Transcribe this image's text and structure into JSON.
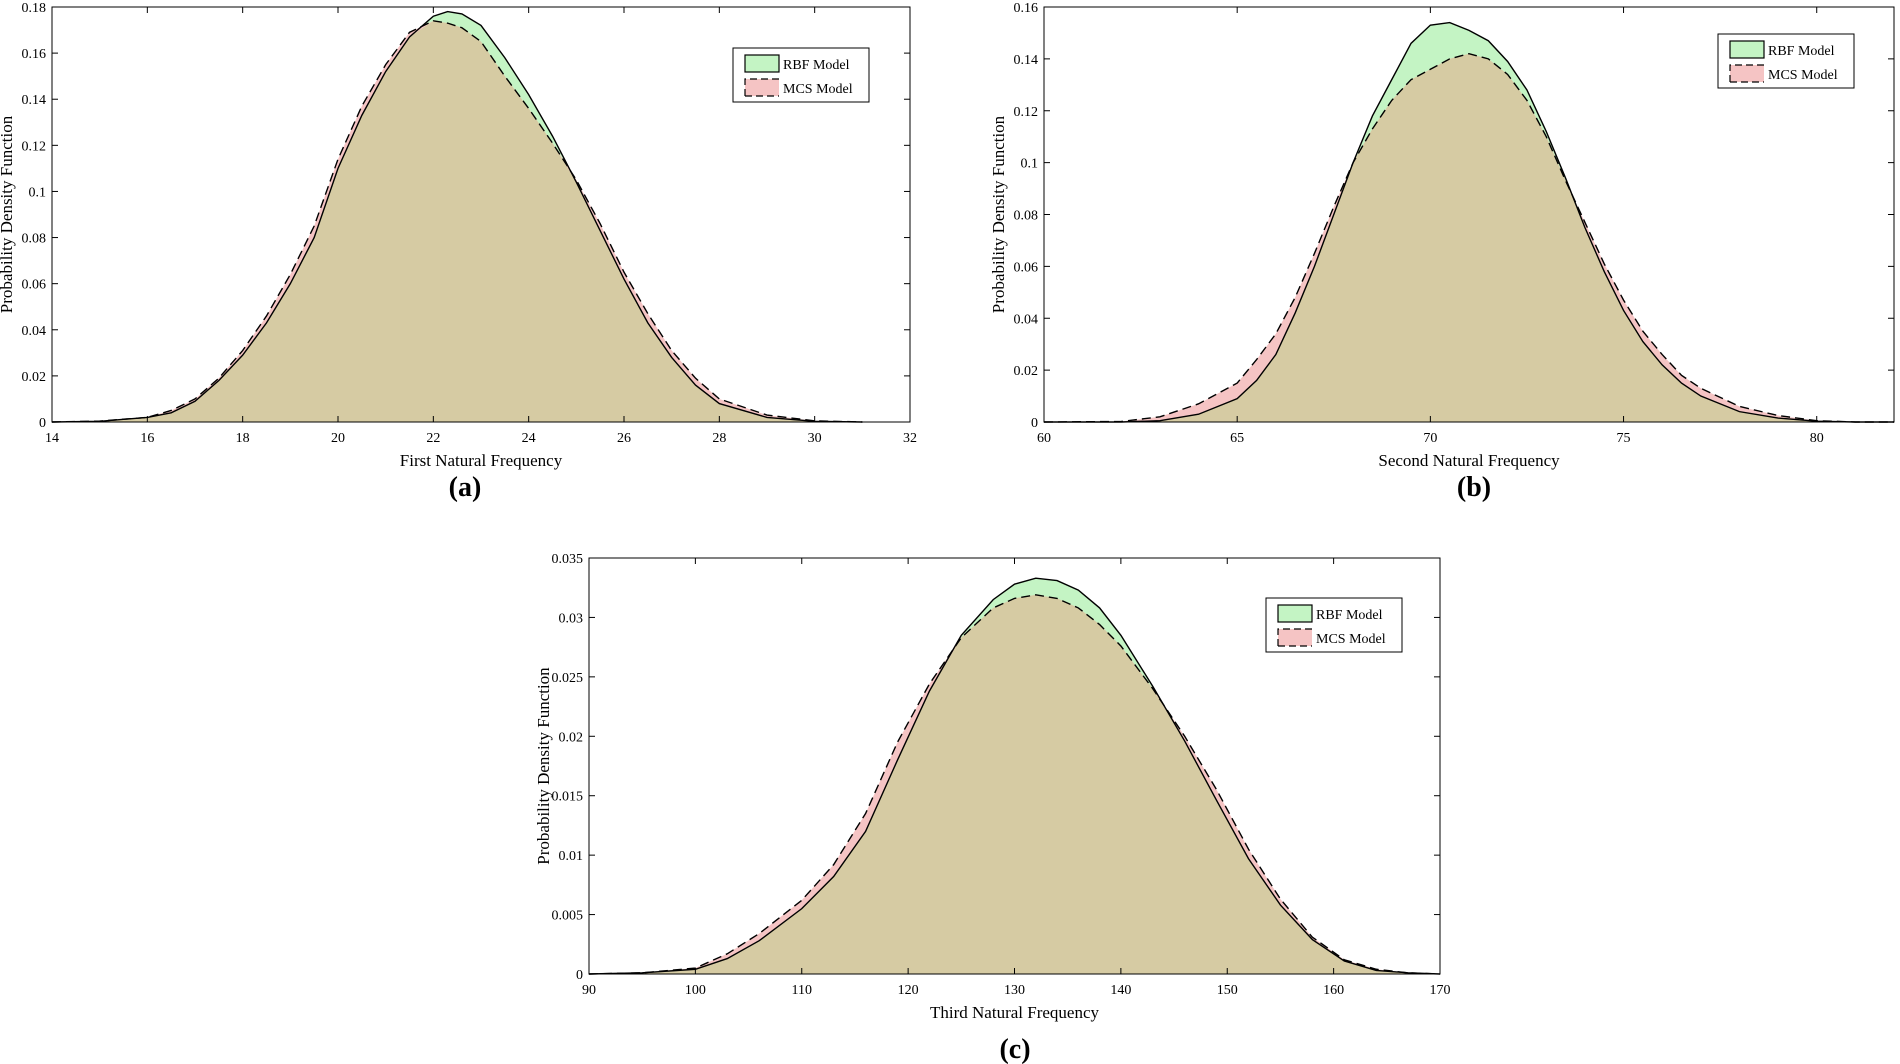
{
  "colors": {
    "rbf_fill": "#c4f4c4",
    "mcs_fill": "#f5c4c4",
    "overlap_fill": "#d6cba3",
    "line": "#000000",
    "background": "#ffffff"
  },
  "chart_data": [
    {
      "type": "area",
      "caption": "(a)",
      "xlabel": "First Natural Frequency",
      "ylabel": "Probability Density Function",
      "xlim": [
        14,
        32
      ],
      "ylim": [
        0,
        0.18
      ],
      "xticks": [
        14,
        16,
        18,
        20,
        22,
        24,
        26,
        28,
        30,
        32
      ],
      "yticks": [
        0,
        0.02,
        0.04,
        0.06,
        0.08,
        0.1,
        0.12,
        0.14,
        0.16,
        0.18
      ],
      "grid": false,
      "legend_position": "top-right",
      "series": [
        {
          "name": "RBF Model",
          "style": "solid",
          "x": [
            14,
            15,
            16,
            16.5,
            17,
            17.5,
            18,
            18.5,
            19,
            19.5,
            20,
            20.5,
            21,
            21.5,
            22,
            22.3,
            22.6,
            23,
            23.5,
            24,
            24.5,
            25,
            25.5,
            26,
            26.5,
            27,
            27.5,
            28,
            29,
            30,
            31
          ],
          "y": [
            0,
            0.0003,
            0.002,
            0.004,
            0.009,
            0.018,
            0.029,
            0.043,
            0.06,
            0.08,
            0.11,
            0.133,
            0.152,
            0.167,
            0.176,
            0.178,
            0.177,
            0.172,
            0.158,
            0.142,
            0.124,
            0.104,
            0.083,
            0.062,
            0.043,
            0.028,
            0.016,
            0.008,
            0.002,
            0.0003,
            0
          ]
        },
        {
          "name": "MCS Model",
          "style": "dashed",
          "x": [
            14,
            15,
            16,
            16.5,
            17,
            17.5,
            18,
            18.5,
            19,
            19.5,
            20,
            20.5,
            21,
            21.5,
            22,
            22.3,
            22.6,
            23,
            23.5,
            24,
            24.5,
            25,
            25.5,
            26,
            26.5,
            27,
            27.5,
            28,
            29,
            30,
            31
          ],
          "y": [
            0,
            0.0004,
            0.002,
            0.005,
            0.01,
            0.019,
            0.031,
            0.046,
            0.064,
            0.085,
            0.114,
            0.137,
            0.155,
            0.169,
            0.174,
            0.173,
            0.171,
            0.165,
            0.15,
            0.136,
            0.121,
            0.105,
            0.086,
            0.065,
            0.047,
            0.031,
            0.019,
            0.01,
            0.003,
            0.0005,
            0
          ]
        }
      ]
    },
    {
      "type": "area",
      "caption": "(b)",
      "xlabel": "Second Natural Frequency",
      "ylabel": "Probability Density Function",
      "xlim": [
        60,
        82
      ],
      "ylim": [
        0,
        0.16
      ],
      "xticks": [
        60,
        65,
        70,
        75,
        80
      ],
      "yticks": [
        0,
        0.02,
        0.04,
        0.06,
        0.08,
        0.1,
        0.12,
        0.14,
        0.16
      ],
      "grid": false,
      "legend_position": "top-right",
      "series": [
        {
          "name": "RBF Model",
          "style": "solid",
          "x": [
            60,
            62,
            63,
            64,
            65,
            65.5,
            66,
            66.5,
            67,
            67.5,
            68,
            68.5,
            69,
            69.5,
            70,
            70.5,
            71,
            71.5,
            72,
            72.5,
            73,
            73.5,
            74,
            74.5,
            75,
            75.5,
            76,
            76.5,
            77,
            78,
            79,
            80,
            81,
            82
          ],
          "y": [
            0,
            0,
            0.0005,
            0.003,
            0.009,
            0.016,
            0.026,
            0.042,
            0.06,
            0.08,
            0.1,
            0.118,
            0.132,
            0.146,
            0.153,
            0.154,
            0.151,
            0.147,
            0.139,
            0.128,
            0.112,
            0.094,
            0.075,
            0.058,
            0.043,
            0.031,
            0.022,
            0.015,
            0.01,
            0.004,
            0.0015,
            0.0003,
            0,
            0
          ]
        },
        {
          "name": "MCS Model",
          "style": "dashed",
          "x": [
            60,
            62,
            63,
            64,
            65,
            65.5,
            66,
            66.5,
            67,
            67.5,
            68,
            68.5,
            69,
            69.5,
            70,
            70.5,
            71,
            71.5,
            72,
            72.5,
            73,
            73.5,
            74,
            74.5,
            75,
            75.5,
            76,
            76.5,
            77,
            78,
            79,
            80,
            81,
            82
          ],
          "y": [
            0,
            0.0002,
            0.002,
            0.007,
            0.015,
            0.024,
            0.034,
            0.048,
            0.065,
            0.083,
            0.1,
            0.113,
            0.124,
            0.132,
            0.136,
            0.14,
            0.142,
            0.14,
            0.134,
            0.124,
            0.11,
            0.093,
            0.077,
            0.061,
            0.047,
            0.035,
            0.026,
            0.018,
            0.013,
            0.006,
            0.0025,
            0.0005,
            0,
            0
          ]
        }
      ]
    },
    {
      "type": "area",
      "caption": "(c)",
      "xlabel": "Third Natural Frequency",
      "ylabel": "Probability Density Function",
      "xlim": [
        90,
        170
      ],
      "ylim": [
        0,
        0.035
      ],
      "xticks": [
        90,
        100,
        110,
        120,
        130,
        140,
        150,
        160,
        170
      ],
      "yticks": [
        0,
        0.005,
        0.01,
        0.015,
        0.02,
        0.025,
        0.03,
        0.035
      ],
      "grid": false,
      "legend_position": "top-right",
      "series": [
        {
          "name": "RBF Model",
          "style": "solid",
          "x": [
            90,
            95,
            100,
            103,
            106,
            110,
            113,
            116,
            119,
            122,
            125,
            128,
            130,
            132,
            134,
            136,
            138,
            140,
            143,
            146,
            149,
            152,
            155,
            158,
            161,
            164,
            167,
            170
          ],
          "y": [
            0,
            0.0001,
            0.0004,
            0.0013,
            0.0028,
            0.0055,
            0.0082,
            0.012,
            0.018,
            0.0238,
            0.0285,
            0.0315,
            0.0328,
            0.0333,
            0.0331,
            0.0323,
            0.0308,
            0.0285,
            0.0242,
            0.0196,
            0.0146,
            0.0097,
            0.0058,
            0.0029,
            0.0011,
            0.0003,
            0.0001,
            0
          ]
        },
        {
          "name": "MCS Model",
          "style": "dashed",
          "x": [
            90,
            95,
            100,
            103,
            106,
            110,
            113,
            116,
            119,
            122,
            125,
            128,
            130,
            132,
            134,
            136,
            138,
            140,
            143,
            146,
            149,
            152,
            155,
            158,
            161,
            164,
            167,
            170
          ],
          "y": [
            0,
            0.0001,
            0.0005,
            0.0017,
            0.0034,
            0.0062,
            0.0092,
            0.0135,
            0.0195,
            0.0244,
            0.0283,
            0.0308,
            0.0316,
            0.0319,
            0.0316,
            0.0308,
            0.0294,
            0.0276,
            0.024,
            0.02,
            0.0155,
            0.0105,
            0.0063,
            0.0031,
            0.0012,
            0.0004,
            0.0001,
            0
          ]
        }
      ]
    }
  ]
}
